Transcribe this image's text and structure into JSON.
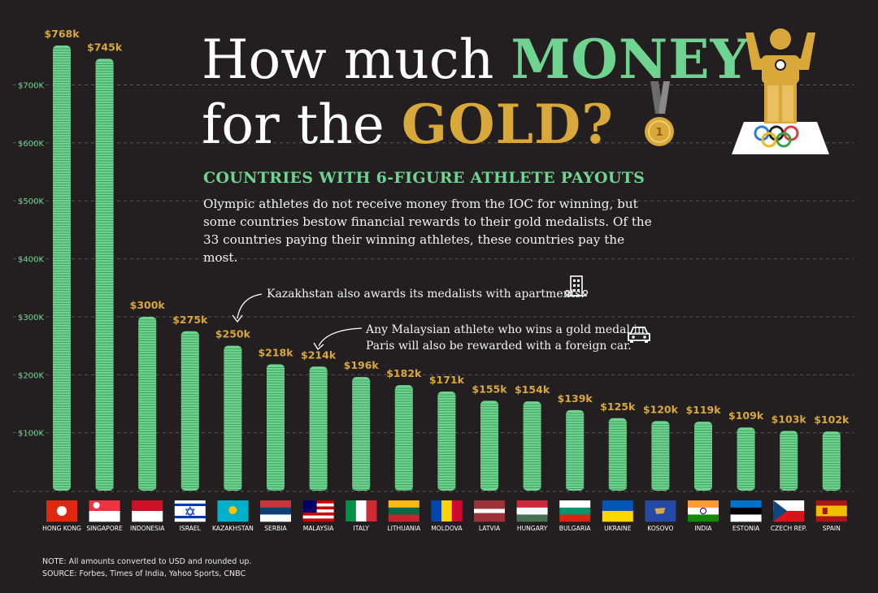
{
  "title": {
    "line1_prefix": "How much ",
    "line1_highlight": "MONEY",
    "line2_prefix": "for the ",
    "line2_highlight": "GOLD?"
  },
  "subtitle": "COUNTRIES WITH 6-FIGURE ATHLETE PAYOUTS",
  "description": "Olympic athletes do not receive money from the IOC for winning, but some countries bestow financial rewards to their gold medalists. Of the 33 countries paying their winning athletes, these countries pay the most.",
  "annotations": {
    "kazakhstan": "Kazakhstan also awards its medalists with apartments.",
    "malaysia_line1": "Any Malaysian athlete who wins a gold medal in",
    "malaysia_line2": "Paris will also be rewarded with a foreign car."
  },
  "icons": {
    "trophy": "olympic-podium-athlete-icon",
    "medal": "gold-medal-icon",
    "building": "apartment-building-icon",
    "car": "car-icon"
  },
  "footer": {
    "note": "NOTE: All amounts converted to USD and rounded up.",
    "source": "SOURCE: Forbes, Times of India, Yahoo Sports, CNBC"
  },
  "colors": {
    "background": "#231f20",
    "money_green": "#6fd48f",
    "gold": "#d8a93a"
  },
  "chart_data": {
    "type": "bar",
    "categories": [
      "HONG KONG",
      "SINGAPORE",
      "INDONESIA",
      "ISRAEL",
      "KAZAKHSTAN",
      "SERBIA",
      "MALAYSIA",
      "ITALY",
      "LITHUANIA",
      "MOLDOVA",
      "LATVIA",
      "HUNGARY",
      "BULGARIA",
      "UKRAINE",
      "KOSOVO",
      "INDIA",
      "ESTONIA",
      "CZECH REP.",
      "SPAIN"
    ],
    "values": [
      768,
      745,
      300,
      275,
      250,
      218,
      214,
      196,
      182,
      171,
      155,
      154,
      139,
      125,
      120,
      119,
      109,
      103,
      102
    ],
    "value_labels": [
      "$768k",
      "$745k",
      "$300k",
      "$275k",
      "$250k",
      "$218k",
      "$214k",
      "$196k",
      "$182k",
      "$171k",
      "$155k",
      "$154k",
      "$139k",
      "$125k",
      "$120k",
      "$119k",
      "$109k",
      "$103k",
      "$102k"
    ],
    "y_ticks": [
      100,
      200,
      300,
      400,
      500,
      600,
      700
    ],
    "y_tick_labels": [
      "$100K",
      "$200K",
      "$300K",
      "$400K",
      "$500K",
      "$600K",
      "$700K"
    ],
    "ylim": [
      0,
      768
    ],
    "grid": true,
    "legend": "none"
  }
}
